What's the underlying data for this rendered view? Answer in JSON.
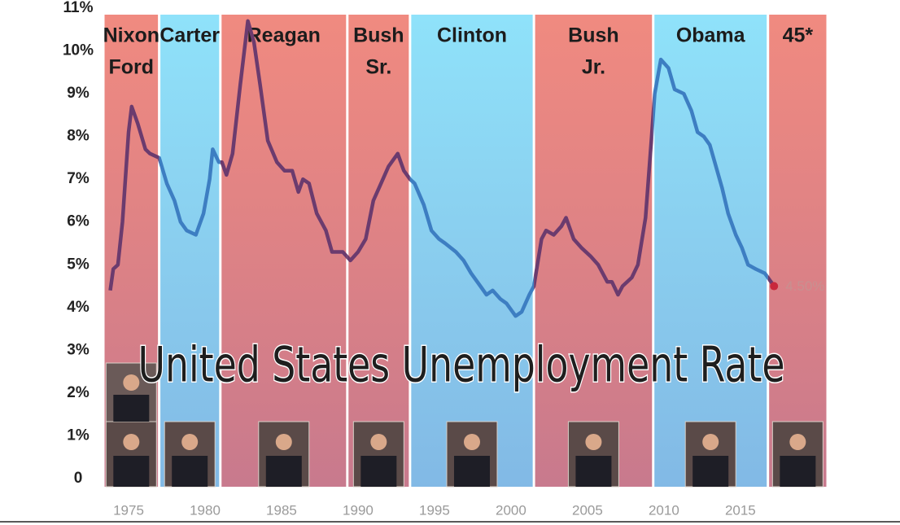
{
  "chart_data": {
    "type": "line",
    "title": "United States Unemployment Rate",
    "xlim": [
      1973.35,
      2020.7
    ],
    "xticks": [
      1975,
      1980,
      1985,
      1990,
      1995,
      2000,
      2005,
      2010,
      2015
    ],
    "ylim": [
      0,
      11
    ],
    "yticks": [
      0,
      {
        "value": 1,
        "label": "1%"
      },
      {
        "value": 2,
        "label": "2%"
      },
      {
        "value": 3,
        "label": "3%"
      },
      {
        "value": 4,
        "label": "4%"
      },
      {
        "value": 5,
        "label": "5%"
      },
      {
        "value": 6,
        "label": "6%"
      },
      {
        "value": 7,
        "label": "7%"
      },
      {
        "value": 8,
        "label": "8%"
      },
      {
        "value": 9,
        "label": "9%"
      },
      {
        "value": 10,
        "label": "10%"
      },
      {
        "value": 11,
        "label": "11%"
      }
    ],
    "bands": [
      {
        "label_lines": [
          "Nixon",
          "Ford"
        ],
        "start": 1973.35,
        "end": 1977,
        "color": "#f08a80",
        "line_color": "#6b3b6e"
      },
      {
        "label_lines": [
          "Carter"
        ],
        "start": 1977,
        "end": 1981,
        "color": "#8fe2fa",
        "line_color": "#3d7ec2"
      },
      {
        "label_lines": [
          "Reagan"
        ],
        "start": 1981,
        "end": 1989.3,
        "color": "#f08a80",
        "line_color": "#6b3b6e"
      },
      {
        "label_lines": [
          "Bush",
          "Sr."
        ],
        "start": 1989.3,
        "end": 1993.4,
        "color": "#f08a80",
        "line_color": "#6b3b6e"
      },
      {
        "label_lines": [
          "Clinton"
        ],
        "start": 1993.4,
        "end": 2001.5,
        "color": "#8fe2fa",
        "line_color": "#3d7ec2"
      },
      {
        "label_lines": [
          "Bush",
          "Jr."
        ],
        "start": 2001.5,
        "end": 2009.3,
        "color": "#f08a80",
        "line_color": "#6b3b6e"
      },
      {
        "label_lines": [
          "Obama"
        ],
        "start": 2009.3,
        "end": 2016.8,
        "color": "#8fe2fa",
        "line_color": "#3d7ec2"
      },
      {
        "label_lines": [
          "45*"
        ],
        "start": 2016.8,
        "end": 2020.7,
        "color": "#f08a80",
        "line_color": "#6b3b6e"
      }
    ],
    "series": [
      {
        "x": [
          1973.8,
          1974,
          1974.3,
          1974.6,
          1975,
          1975.2,
          1975.6,
          1976.1,
          1976.4,
          1977,
          1977.5,
          1978,
          1978.4,
          1978.8,
          1979.4,
          1979.9,
          1980.3,
          1980.5,
          1980.9,
          1981.1,
          1981.4,
          1981.8,
          1982.3,
          1982.8,
          1983.2,
          1983.6,
          1984.1,
          1984.7,
          1985.2,
          1985.7,
          1986.1,
          1986.4,
          1986.8,
          1987.3,
          1987.9,
          1988.3,
          1989,
          1989.5,
          1990,
          1990.5,
          1991,
          1991.5,
          1992,
          1992.6,
          1993,
          1993.4,
          1993.7,
          1994.3,
          1994.8,
          1995.3,
          1995.7,
          1996.4,
          1996.9,
          1997.4,
          1998,
          1998.4,
          1998.8,
          1999.3,
          1999.7,
          2000.3,
          2000.7,
          2001.2,
          2001.5,
          2002,
          2002.3,
          2002.8,
          2003.3,
          2003.6,
          2004.1,
          2004.6,
          2005.2,
          2005.7,
          2006.3,
          2006.6,
          2007,
          2007.3,
          2007.9,
          2008.3,
          2008.8,
          2009.2,
          2009.4,
          2009.8,
          2010.3,
          2010.7,
          2011.3,
          2011.8,
          2012.2,
          2012.6,
          2013,
          2013.4,
          2013.8,
          2014.2,
          2014.7,
          2015.1,
          2015.5,
          2016,
          2016.6,
          2017,
          2017.2
        ],
        "values": [
          4.4,
          4.9,
          5.0,
          6.0,
          8.1,
          8.7,
          8.3,
          7.7,
          7.6,
          7.5,
          6.9,
          6.5,
          6.0,
          5.8,
          5.7,
          6.2,
          7.0,
          7.7,
          7.4,
          7.4,
          7.1,
          7.6,
          9.2,
          10.7,
          10.2,
          9.2,
          7.9,
          7.4,
          7.2,
          7.2,
          6.7,
          7.0,
          6.9,
          6.2,
          5.8,
          5.3,
          5.3,
          5.1,
          5.3,
          5.6,
          6.5,
          6.9,
          7.3,
          7.6,
          7.2,
          7.0,
          6.9,
          6.4,
          5.8,
          5.6,
          5.5,
          5.3,
          5.1,
          4.8,
          4.5,
          4.3,
          4.4,
          4.2,
          4.1,
          3.8,
          3.9,
          4.3,
          4.5,
          5.6,
          5.8,
          5.7,
          5.9,
          6.1,
          5.6,
          5.4,
          5.2,
          5.0,
          4.6,
          4.6,
          4.3,
          4.5,
          4.7,
          5.0,
          6.1,
          8.0,
          9.0,
          9.8,
          9.6,
          9.1,
          9.0,
          8.6,
          8.1,
          8.0,
          7.8,
          7.3,
          6.8,
          6.2,
          5.7,
          5.4,
          5.0,
          4.9,
          4.8,
          4.6,
          4.5
        ]
      }
    ],
    "end_point": {
      "x": 2017.2,
      "y": 4.5,
      "label": "4.50%",
      "color": "#c8283c"
    }
  }
}
